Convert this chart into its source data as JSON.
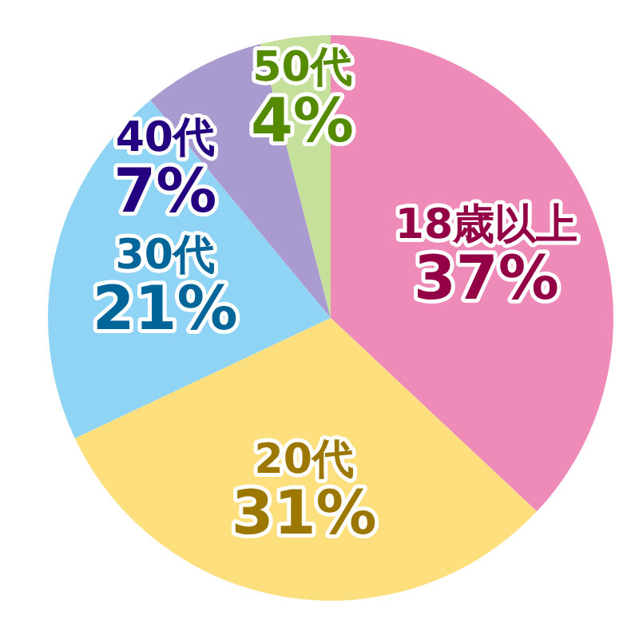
{
  "chart_data": {
    "type": "pie",
    "categories": [
      "18歳以上",
      "20代",
      "30代",
      "40代",
      "50代"
    ],
    "values": [
      37,
      31,
      21,
      7,
      4
    ],
    "value_labels": [
      "37%",
      "31%",
      "21%",
      "7%",
      "4%"
    ],
    "colors": [
      "#ee8bb9",
      "#fddf7e",
      "#8fd3f5",
      "#a99ad0",
      "#c5e09b"
    ],
    "legend": false
  }
}
